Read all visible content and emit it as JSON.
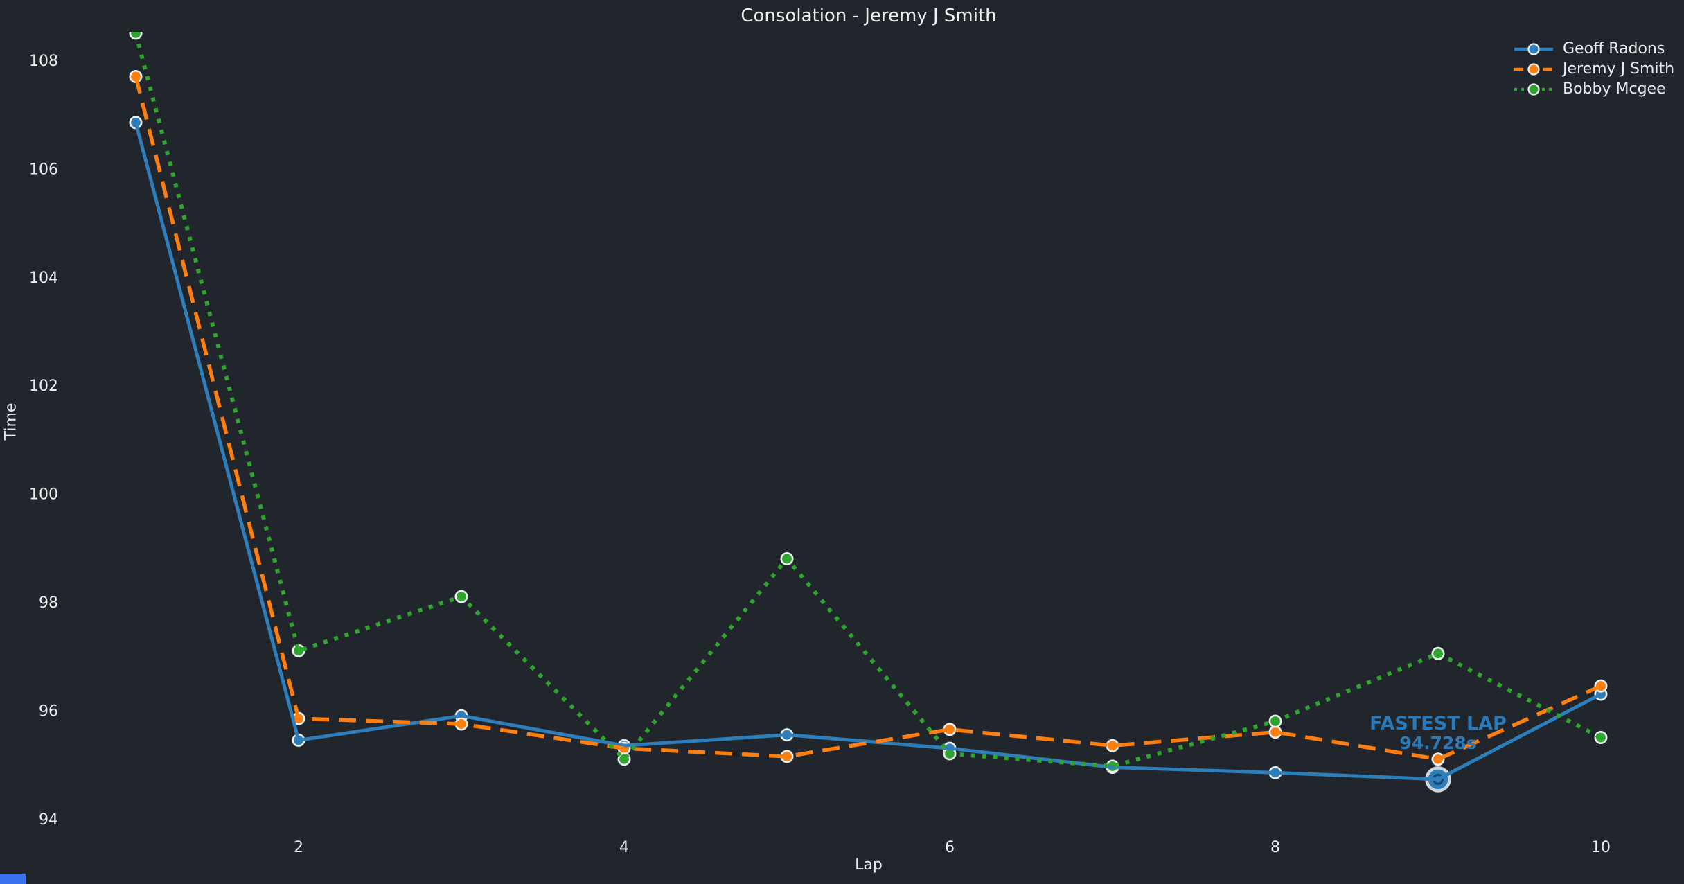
{
  "chart": {
    "title": "Consolation - Jeremy J Smith",
    "xlabel": "Lap",
    "ylabel": "Time"
  },
  "chart_data": {
    "type": "line",
    "title": "Consolation - Jeremy J Smith",
    "xlabel": "Lap",
    "ylabel": "Time",
    "x": [
      1,
      2,
      3,
      4,
      5,
      6,
      7,
      8,
      9,
      10
    ],
    "xticks": [
      2,
      4,
      6,
      8,
      10
    ],
    "yticks": [
      94,
      96,
      98,
      100,
      102,
      104,
      106,
      108
    ],
    "xlim": [
      0.57,
      10.43
    ],
    "ylim": [
      93.88,
      108.54
    ],
    "grid": false,
    "legend_position": "upper right",
    "series": [
      {
        "name": "Geoff Radons",
        "color": "#2e7ebc",
        "line_style": "solid",
        "marker": "circle",
        "values": [
          106.85,
          95.45,
          95.9,
          95.35,
          95.55,
          95.3,
          94.95,
          94.85,
          94.728,
          96.3
        ]
      },
      {
        "name": "Jeremy J Smith",
        "color": "#ff7f0e",
        "line_style": "dashed",
        "marker": "circle",
        "values": [
          107.7,
          95.85,
          95.75,
          95.3,
          95.15,
          95.65,
          95.35,
          95.6,
          95.1,
          96.45
        ]
      },
      {
        "name": "Bobby Mcgee",
        "color": "#2fa52f",
        "line_style": "dotted",
        "marker": "circle",
        "values": [
          108.5,
          97.1,
          98.1,
          95.1,
          98.8,
          95.2,
          94.97,
          95.8,
          97.05,
          95.5
        ]
      }
    ],
    "annotation": {
      "text_line1": "FASTEST LAP",
      "text_line2": "94.728s",
      "series": "Geoff Radons",
      "lap": 9,
      "value": 94.728,
      "color": "#2b7ab8"
    }
  },
  "colors": {
    "background": "#21252c",
    "tick_text": "#eceff1",
    "marker_edge": "#edf1f3",
    "fastest_ring": "#ccd8e0",
    "fastest_inner_ring": "#14486e",
    "corner_marker": "#3b72f0"
  }
}
